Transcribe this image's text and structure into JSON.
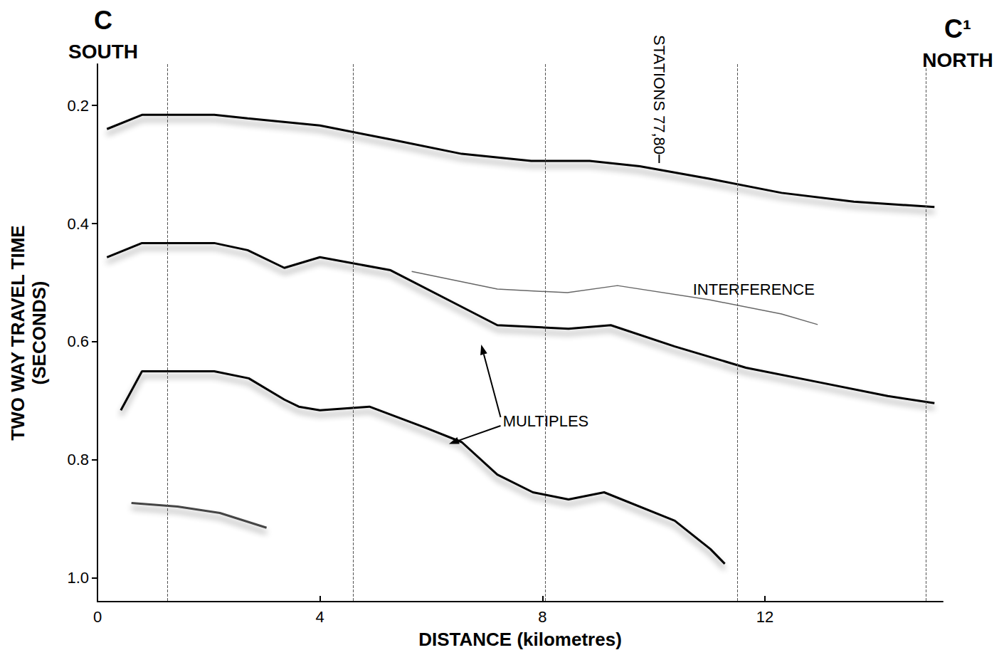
{
  "chart_data": {
    "type": "line",
    "corner_labels": {
      "left": [
        "C",
        "SOUTH"
      ],
      "right": [
        "C¹",
        "NORTH"
      ]
    },
    "xlabel": "DISTANCE (kilometres)",
    "ylabel": "TWO WAY TRAVEL TIME (SECONDS)",
    "xlim": [
      0,
      15.2
    ],
    "xticks": [
      0,
      4,
      8,
      12
    ],
    "ylim": [
      0.13,
      1.04
    ],
    "yticks": [
      0.2,
      0.4,
      0.6,
      0.8,
      {
        "value": 1,
        "label": "1.0"
      }
    ],
    "inverted_y": true,
    "grid": false,
    "series": [
      {
        "color": "#000000",
        "x": [
          0.17,
          0.8,
          2.1,
          2.7,
          4.0,
          5.3,
          6.55,
          7.8,
          8.85,
          9.75,
          11.0,
          12.3,
          13.6,
          15.05
        ],
        "values": [
          0.24,
          0.216,
          0.216,
          0.222,
          0.234,
          0.258,
          0.282,
          0.294,
          0.294,
          0.303,
          0.324,
          0.348,
          0.363,
          0.372
        ]
      },
      {
        "color": "#000000",
        "x": [
          0.17,
          0.8,
          2.1,
          2.7,
          3.36,
          4.0,
          5.27,
          6.55,
          7.19,
          8.47,
          9.23,
          10.38,
          11.66,
          12.94,
          14.21,
          15.05
        ],
        "values": [
          0.457,
          0.433,
          0.433,
          0.445,
          0.475,
          0.457,
          0.479,
          0.541,
          0.572,
          0.578,
          0.572,
          0.608,
          0.644,
          0.668,
          0.692,
          0.704
        ]
      },
      {
        "color": "#000000",
        "x": [
          0.42,
          0.8,
          2.1,
          2.72,
          3.36,
          3.62,
          4.0,
          4.89,
          5.91,
          6.55,
          7.19,
          7.83,
          8.47,
          9.11,
          10.38,
          11.02,
          11.28
        ],
        "values": [
          0.716,
          0.65,
          0.65,
          0.662,
          0.698,
          0.71,
          0.716,
          0.71,
          0.746,
          0.77,
          0.825,
          0.855,
          0.867,
          0.855,
          0.903,
          0.951,
          0.976
        ]
      },
      {
        "color": "#444444",
        "x": [
          0.61,
          1.44,
          2.2,
          3.04
        ],
        "values": [
          0.873,
          0.879,
          0.89,
          0.915
        ]
      },
      {
        "color": "#666666",
        "x": [
          5.65,
          7.19,
          8.45,
          9.35,
          11.0,
          12.3,
          12.95
        ],
        "values": [
          0.481,
          0.511,
          0.517,
          0.505,
          0.529,
          0.553,
          0.571
        ]
      }
    ],
    "vertical_markers": [
      1.26,
      4.6,
      8.05,
      11.5,
      14.9
    ],
    "annotations": [
      {
        "text": "STATIONS 77,80",
        "x": 10.1,
        "y": 0.3
      },
      {
        "text": "INTERFERENCE",
        "x": 11.8,
        "y": 0.511
      },
      {
        "text": "MULTIPLES",
        "x": 8.06,
        "y": 0.735,
        "arrows": [
          [
            6.9,
            0.605
          ],
          [
            6.32,
            0.773
          ]
        ]
      }
    ]
  }
}
